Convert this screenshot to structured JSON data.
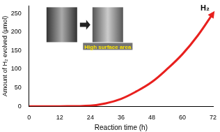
{
  "chart_data": {
    "type": "line",
    "x_label": "Reaction time (h)",
    "y_label": "Amount of H₂ evolved (μmol)",
    "annotations": [
      "H₂",
      "High surface area"
    ],
    "series": [
      {
        "name": null,
        "color": "#e8201e",
        "x": [
          0,
          12,
          24,
          30,
          36,
          42,
          48,
          54,
          60,
          66,
          72
        ],
        "values": [
          0,
          0,
          2,
          8,
          20,
          40,
          65,
          100,
          140,
          190,
          250
        ]
      }
    ],
    "xlim": [
      0,
      72
    ],
    "xticks": [
      0,
      12,
      24,
      36,
      48,
      60,
      72
    ],
    "ylim": [
      0,
      270
    ],
    "yticks": [
      0,
      50,
      100,
      150,
      200,
      250
    ],
    "grid": false
  }
}
